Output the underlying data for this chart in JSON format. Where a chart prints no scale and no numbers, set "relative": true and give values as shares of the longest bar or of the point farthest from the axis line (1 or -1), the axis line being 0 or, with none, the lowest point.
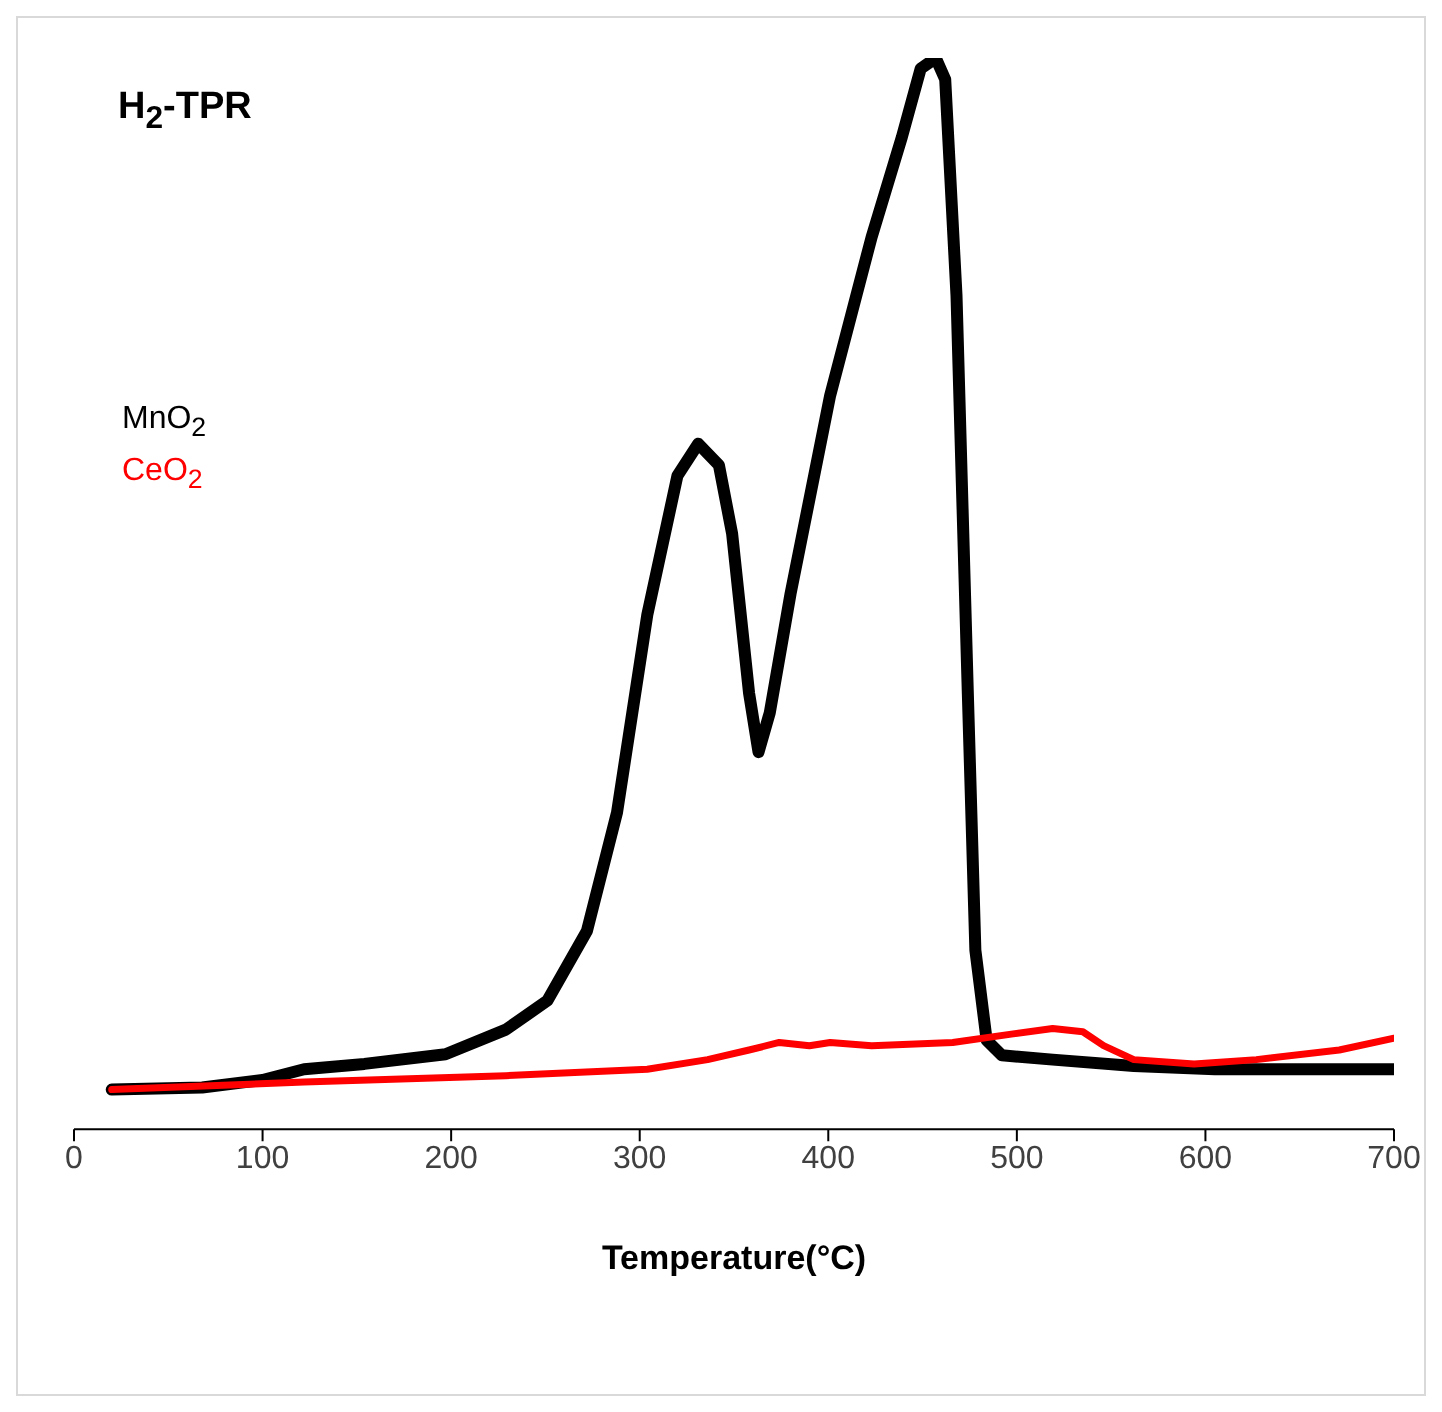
{
  "chart_data": {
    "type": "line",
    "title": "H$_{2}$-TPR",
    "xlabel": "Temperature(°C)",
    "relative": true,
    "xlim": [
      0,
      700
    ],
    "xticks": [
      0,
      100,
      200,
      300,
      400,
      500,
      600,
      700
    ],
    "grid": false,
    "legend": "top left",
    "marker": "none",
    "line_style": "solid",
    "series": [
      {
        "name": "MnO$_{2}$",
        "color": "#000000",
        "x": [
          20,
          68,
          100,
          122,
          154,
          197,
          229,
          251,
          272,
          288,
          304,
          320,
          331,
          342,
          349,
          358,
          363,
          369,
          380,
          401,
          423,
          439,
          449,
          457,
          462,
          468,
          474,
          478,
          484,
          492,
          519,
          562,
          605,
          700
        ],
        "values": [
          0.037,
          0.039,
          0.046,
          0.056,
          0.061,
          0.07,
          0.093,
          0.12,
          0.185,
          0.296,
          0.48,
          0.61,
          0.64,
          0.62,
          0.556,
          0.407,
          0.352,
          0.389,
          0.5,
          0.685,
          0.833,
          0.926,
          0.99,
          1,
          0.98,
          0.778,
          0.407,
          0.167,
          0.083,
          0.069,
          0.065,
          0.059,
          0.056,
          0.056
        ]
      },
      {
        "name": "CeO$_{2}$",
        "color": "#ff0000",
        "x": [
          20,
          122,
          229,
          304,
          336,
          358,
          374,
          390,
          401,
          423,
          466,
          498,
          519,
          535,
          546,
          562,
          594,
          627,
          671,
          700
        ],
        "values": [
          0.037,
          0.044,
          0.05,
          0.056,
          0.065,
          0.074,
          0.081,
          0.078,
          0.081,
          0.078,
          0.081,
          0.089,
          0.094,
          0.091,
          0.078,
          0.065,
          0.061,
          0.065,
          0.074,
          0.085
        ]
      }
    ]
  }
}
